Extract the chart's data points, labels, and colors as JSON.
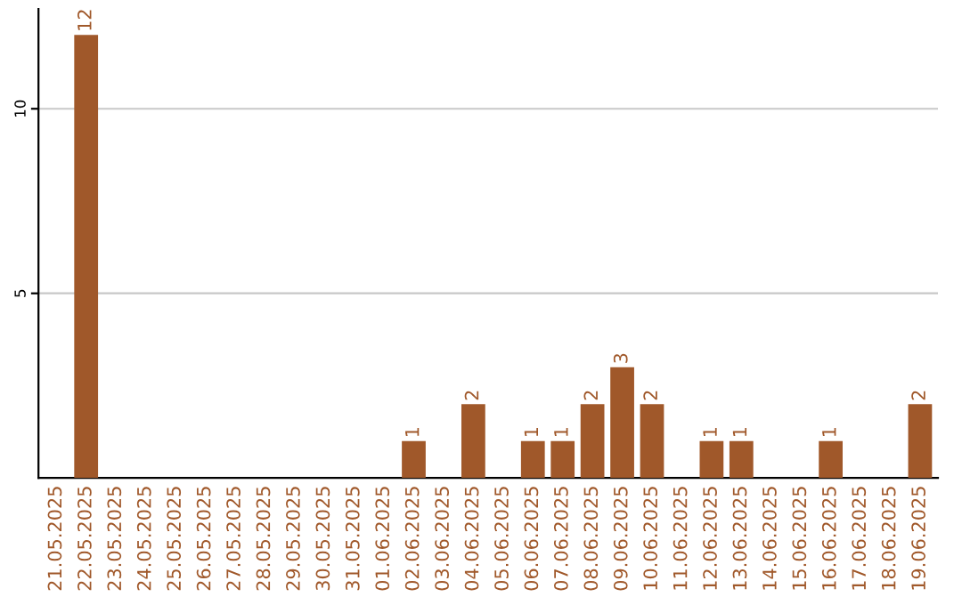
{
  "chart_data": {
    "type": "bar",
    "categories": [
      "21.05.2025",
      "22.05.2025",
      "23.05.2025",
      "24.05.2025",
      "25.05.2025",
      "26.05.2025",
      "27.05.2025",
      "28.05.2025",
      "29.05.2025",
      "30.05.2025",
      "31.05.2025",
      "01.06.2025",
      "02.06.2025",
      "03.06.2025",
      "04.06.2025",
      "05.06.2025",
      "06.06.2025",
      "07.06.2025",
      "08.06.2025",
      "09.06.2025",
      "10.06.2025",
      "11.06.2025",
      "12.06.2025",
      "13.06.2025",
      "14.06.2025",
      "15.06.2025",
      "16.06.2025",
      "17.06.2025",
      "18.06.2025",
      "19.06.2025"
    ],
    "values": [
      0,
      12,
      0,
      0,
      0,
      0,
      0,
      0,
      0,
      0,
      0,
      0,
      1,
      0,
      2,
      0,
      1,
      1,
      2,
      3,
      2,
      0,
      1,
      1,
      0,
      0,
      1,
      0,
      0,
      2
    ],
    "value_labels": [
      null,
      "12",
      null,
      null,
      null,
      null,
      null,
      null,
      null,
      null,
      null,
      null,
      "1",
      null,
      "2",
      null,
      "1",
      "1",
      "2",
      "3",
      "2",
      null,
      "1",
      "1",
      null,
      null,
      "1",
      null,
      null,
      "2"
    ],
    "color": "#a0582a",
    "ylim": [
      0,
      12.7
    ],
    "yticks": [
      5,
      10
    ],
    "grid": "y",
    "legend": false
  }
}
